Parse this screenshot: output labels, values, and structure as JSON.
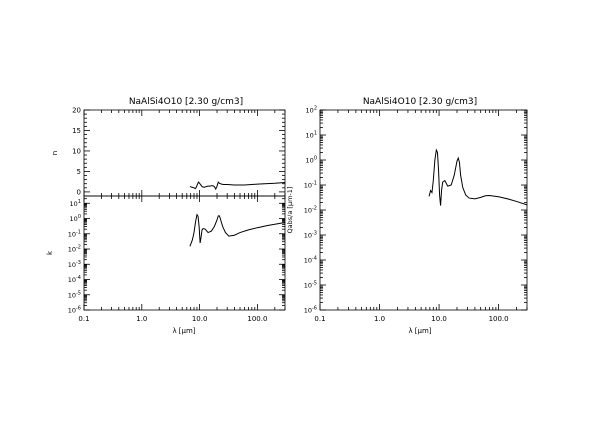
{
  "chart_data": [
    {
      "type": "line",
      "title": "NaAlSi4O10 [2.30 g/cm3]",
      "panels": [
        {
          "id": "n",
          "ylabel": "n",
          "yscale": "linear",
          "ylim": [
            -1,
            20
          ],
          "yticks": [
            "0",
            "5",
            "10",
            "15",
            "20"
          ],
          "series": [
            {
              "x": [
                6.8,
                7.5,
                8.0,
                8.4,
                8.8,
                9.2,
                9.6,
                10.0,
                10.5,
                11.0,
                12.0,
                13.0,
                14.0,
                15.0,
                16.0,
                17.0,
                18.0,
                19.0,
                20.0,
                21.0,
                22.0,
                24.0,
                26.0,
                30.0,
                40.0,
                60.0,
                100.0,
                200.0,
                300.0
              ],
              "y": [
                1.3,
                1.1,
                1.0,
                0.8,
                1.2,
                1.9,
                2.4,
                2.1,
                1.7,
                1.3,
                1.1,
                1.3,
                1.4,
                1.4,
                1.5,
                1.5,
                1.3,
                0.7,
                1.4,
                2.4,
                2.1,
                1.9,
                1.8,
                1.8,
                1.7,
                1.7,
                1.9,
                2.1,
                2.3
              ]
            }
          ]
        },
        {
          "id": "k",
          "ylabel": "k",
          "yscale": "log",
          "ylim": [
            1e-06,
            30
          ],
          "yticks": [
            "10^-6",
            "10^-5",
            "10^-4",
            "10^-3",
            "10^-2",
            "10^-1",
            "10^0",
            "10^1"
          ],
          "series": [
            {
              "x": [
                6.8,
                7.5,
                8.0,
                8.5,
                9.0,
                9.4,
                9.8,
                10.2,
                10.6,
                11.0,
                11.5,
                12.5,
                14.0,
                16.0,
                18.0,
                20.0,
                21.0,
                22.0,
                23.0,
                25.0,
                28.0,
                32.0,
                40.0,
                50.0,
                70.0,
                100.0,
                150.0,
                200.0,
                300.0
              ],
              "y": [
                0.015,
                0.04,
                0.12,
                0.6,
                1.8,
                1.4,
                0.3,
                0.025,
                0.06,
                0.18,
                0.22,
                0.2,
                0.12,
                0.15,
                0.3,
                0.8,
                1.5,
                1.5,
                0.9,
                0.3,
                0.12,
                0.07,
                0.08,
                0.12,
                0.18,
                0.25,
                0.35,
                0.42,
                0.55
              ]
            }
          ]
        }
      ],
      "xlabel": "λ [μm]",
      "xscale": "log",
      "xlim": [
        0.1,
        300
      ],
      "xticks": [
        "0.1",
        "1.0",
        "10.0",
        "100.0"
      ]
    },
    {
      "type": "line",
      "title": "NaAlSi4O10 [2.30 g/cm3]",
      "ylabel": "Qabs/a [μm-1]",
      "yscale": "log",
      "ylim": [
        1e-06,
        100
      ],
      "yticks": [
        "10^-6",
        "10^-5",
        "10^-4",
        "10^-3",
        "10^-2",
        "10^-1",
        "10^0",
        "10^1",
        "10^2"
      ],
      "xlabel": "λ [μm]",
      "xscale": "log",
      "xlim": [
        0.1,
        300
      ],
      "xticks": [
        "0.1",
        "1.0",
        "10.0",
        "100.0"
      ],
      "series": [
        {
          "x": [
            6.8,
            7.2,
            7.6,
            8.0,
            8.5,
            9.0,
            9.4,
            9.8,
            10.2,
            10.6,
            11.0,
            11.5,
            12.5,
            14.0,
            16.0,
            18.0,
            20.0,
            21.0,
            22.0,
            23.0,
            25.0,
            28.0,
            32.0,
            40.0,
            50.0,
            60.0,
            70.0,
            100.0,
            150.0,
            200.0,
            300.0
          ],
          "y": [
            0.035,
            0.06,
            0.05,
            0.15,
            1.0,
            2.5,
            2.0,
            0.4,
            0.04,
            0.015,
            0.06,
            0.13,
            0.15,
            0.09,
            0.1,
            0.25,
            0.9,
            1.2,
            0.8,
            0.25,
            0.08,
            0.04,
            0.03,
            0.028,
            0.032,
            0.037,
            0.038,
            0.034,
            0.027,
            0.022,
            0.016
          ]
        }
      ]
    }
  ]
}
